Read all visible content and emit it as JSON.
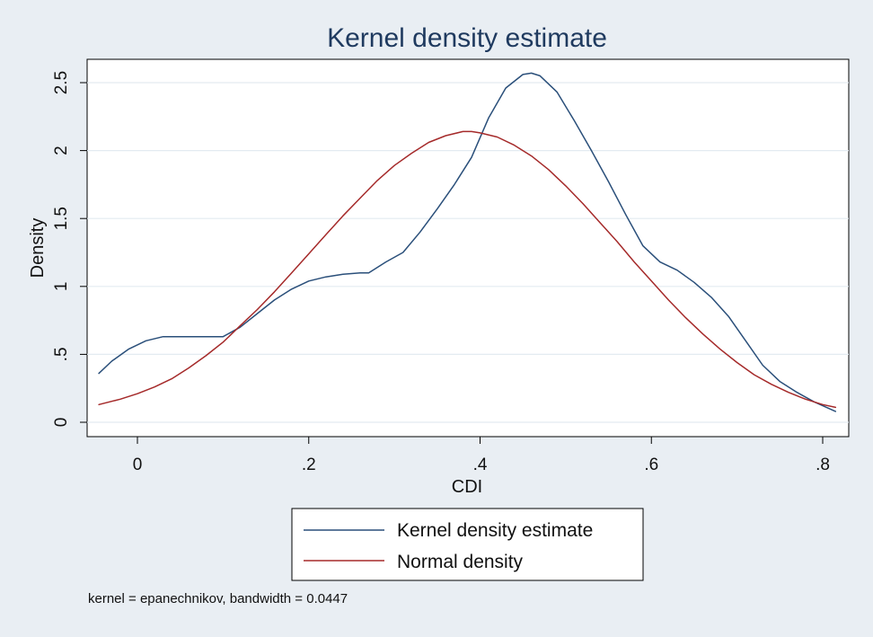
{
  "chart_data": {
    "type": "line",
    "title": "Kernel density estimate",
    "xlabel": "CDI",
    "ylabel": "Density",
    "xlim": [
      -0.045,
      0.82
    ],
    "ylim": [
      0,
      2.6
    ],
    "x_ticks": [
      0,
      0.2,
      0.4,
      0.6,
      0.8
    ],
    "x_tick_labels": [
      "0",
      ".2",
      ".4",
      ".6",
      ".8"
    ],
    "y_ticks": [
      0,
      0.5,
      1,
      1.5,
      2,
      2.5
    ],
    "y_tick_labels": [
      "0",
      ".5",
      "1",
      "1.5",
      "2",
      "2.5"
    ],
    "grid": true,
    "legend_position": "bottom",
    "series": [
      {
        "name": "Kernel density estimate",
        "color": "#2a4f7a",
        "x": [
          -0.045,
          -0.03,
          -0.01,
          0.01,
          0.03,
          0.05,
          0.07,
          0.09,
          0.1,
          0.12,
          0.14,
          0.16,
          0.18,
          0.2,
          0.22,
          0.24,
          0.26,
          0.27,
          0.29,
          0.31,
          0.33,
          0.35,
          0.37,
          0.39,
          0.41,
          0.43,
          0.45,
          0.46,
          0.47,
          0.49,
          0.51,
          0.53,
          0.55,
          0.57,
          0.59,
          0.61,
          0.63,
          0.65,
          0.67,
          0.69,
          0.71,
          0.73,
          0.75,
          0.77,
          0.79,
          0.815
        ],
        "y": [
          0.36,
          0.45,
          0.54,
          0.6,
          0.63,
          0.63,
          0.63,
          0.63,
          0.63,
          0.7,
          0.8,
          0.9,
          0.98,
          1.04,
          1.07,
          1.09,
          1.1,
          1.1,
          1.18,
          1.25,
          1.4,
          1.57,
          1.75,
          1.95,
          2.24,
          2.46,
          2.56,
          2.57,
          2.55,
          2.43,
          2.22,
          2.0,
          1.77,
          1.53,
          1.3,
          1.18,
          1.12,
          1.03,
          0.92,
          0.78,
          0.6,
          0.42,
          0.3,
          0.22,
          0.15,
          0.08
        ]
      },
      {
        "name": "Normal density",
        "color": "#a52a2a",
        "x": [
          -0.045,
          -0.02,
          0.0,
          0.02,
          0.04,
          0.06,
          0.08,
          0.1,
          0.12,
          0.14,
          0.16,
          0.18,
          0.2,
          0.22,
          0.24,
          0.26,
          0.28,
          0.3,
          0.32,
          0.34,
          0.36,
          0.38,
          0.39,
          0.4,
          0.42,
          0.44,
          0.46,
          0.48,
          0.5,
          0.52,
          0.54,
          0.56,
          0.58,
          0.6,
          0.62,
          0.64,
          0.66,
          0.68,
          0.7,
          0.72,
          0.74,
          0.76,
          0.78,
          0.8,
          0.815
        ],
        "y": [
          0.13,
          0.17,
          0.21,
          0.26,
          0.32,
          0.4,
          0.49,
          0.59,
          0.71,
          0.83,
          0.96,
          1.1,
          1.24,
          1.38,
          1.52,
          1.65,
          1.78,
          1.89,
          1.98,
          2.06,
          2.11,
          2.14,
          2.14,
          2.13,
          2.1,
          2.04,
          1.96,
          1.86,
          1.74,
          1.61,
          1.47,
          1.33,
          1.18,
          1.04,
          0.9,
          0.77,
          0.65,
          0.54,
          0.44,
          0.35,
          0.28,
          0.22,
          0.17,
          0.13,
          0.11
        ]
      }
    ],
    "legend": {
      "entries": [
        "Kernel density estimate",
        "Normal density"
      ]
    },
    "note": "kernel = epanechnikov, bandwidth = 0.0447"
  }
}
